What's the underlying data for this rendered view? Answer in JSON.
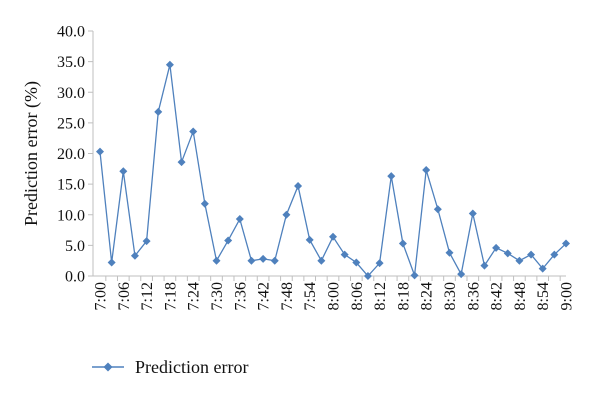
{
  "chart_data": {
    "type": "line",
    "title": "",
    "xlabel": "",
    "ylabel": "Prediction error (%)",
    "ylim": [
      0,
      40
    ],
    "yticks": [
      "0.0",
      "5.0",
      "10.0",
      "15.0",
      "20.0",
      "25.0",
      "30.0",
      "35.0",
      "40.0"
    ],
    "x": [
      "7:00",
      "7:03",
      "7:06",
      "7:09",
      "7:12",
      "7:15",
      "7:18",
      "7:21",
      "7:24",
      "7:27",
      "7:30",
      "7:33",
      "7:36",
      "7:39",
      "7:42",
      "7:45",
      "7:48",
      "7:51",
      "7:54",
      "7:57",
      "8:00",
      "8:03",
      "8:06",
      "8:09",
      "8:12",
      "8:15",
      "8:18",
      "8:21",
      "8:24",
      "8:27",
      "8:30",
      "8:33",
      "8:36",
      "8:39",
      "8:42",
      "8:45",
      "8:48",
      "8:51",
      "8:54",
      "8:57",
      "9:00"
    ],
    "xtick_labels": [
      "7:00",
      "7:06",
      "7:12",
      "7:18",
      "7:24",
      "7:30",
      "7:36",
      "7:42",
      "7:48",
      "7:54",
      "8:00",
      "8:06",
      "8:12",
      "8:18",
      "8:24",
      "8:30",
      "8:36",
      "8:42",
      "8:48",
      "8:54",
      "9:00"
    ],
    "grid": false,
    "legend_position": "bottom-left",
    "series": [
      {
        "name": "Prediction error",
        "color": "#4f81bd",
        "marker": "diamond",
        "values": [
          20.3,
          2.2,
          17.1,
          3.3,
          5.7,
          26.8,
          34.5,
          18.6,
          23.6,
          11.8,
          2.5,
          5.8,
          9.3,
          2.5,
          2.8,
          2.5,
          10.0,
          14.7,
          5.9,
          2.5,
          6.4,
          3.5,
          2.2,
          0.0,
          2.1,
          16.3,
          5.3,
          0.1,
          17.3,
          10.9,
          3.8,
          0.3,
          10.2,
          1.7,
          4.6,
          3.7,
          2.5,
          3.5,
          1.2,
          3.5,
          5.3
        ]
      }
    ]
  }
}
